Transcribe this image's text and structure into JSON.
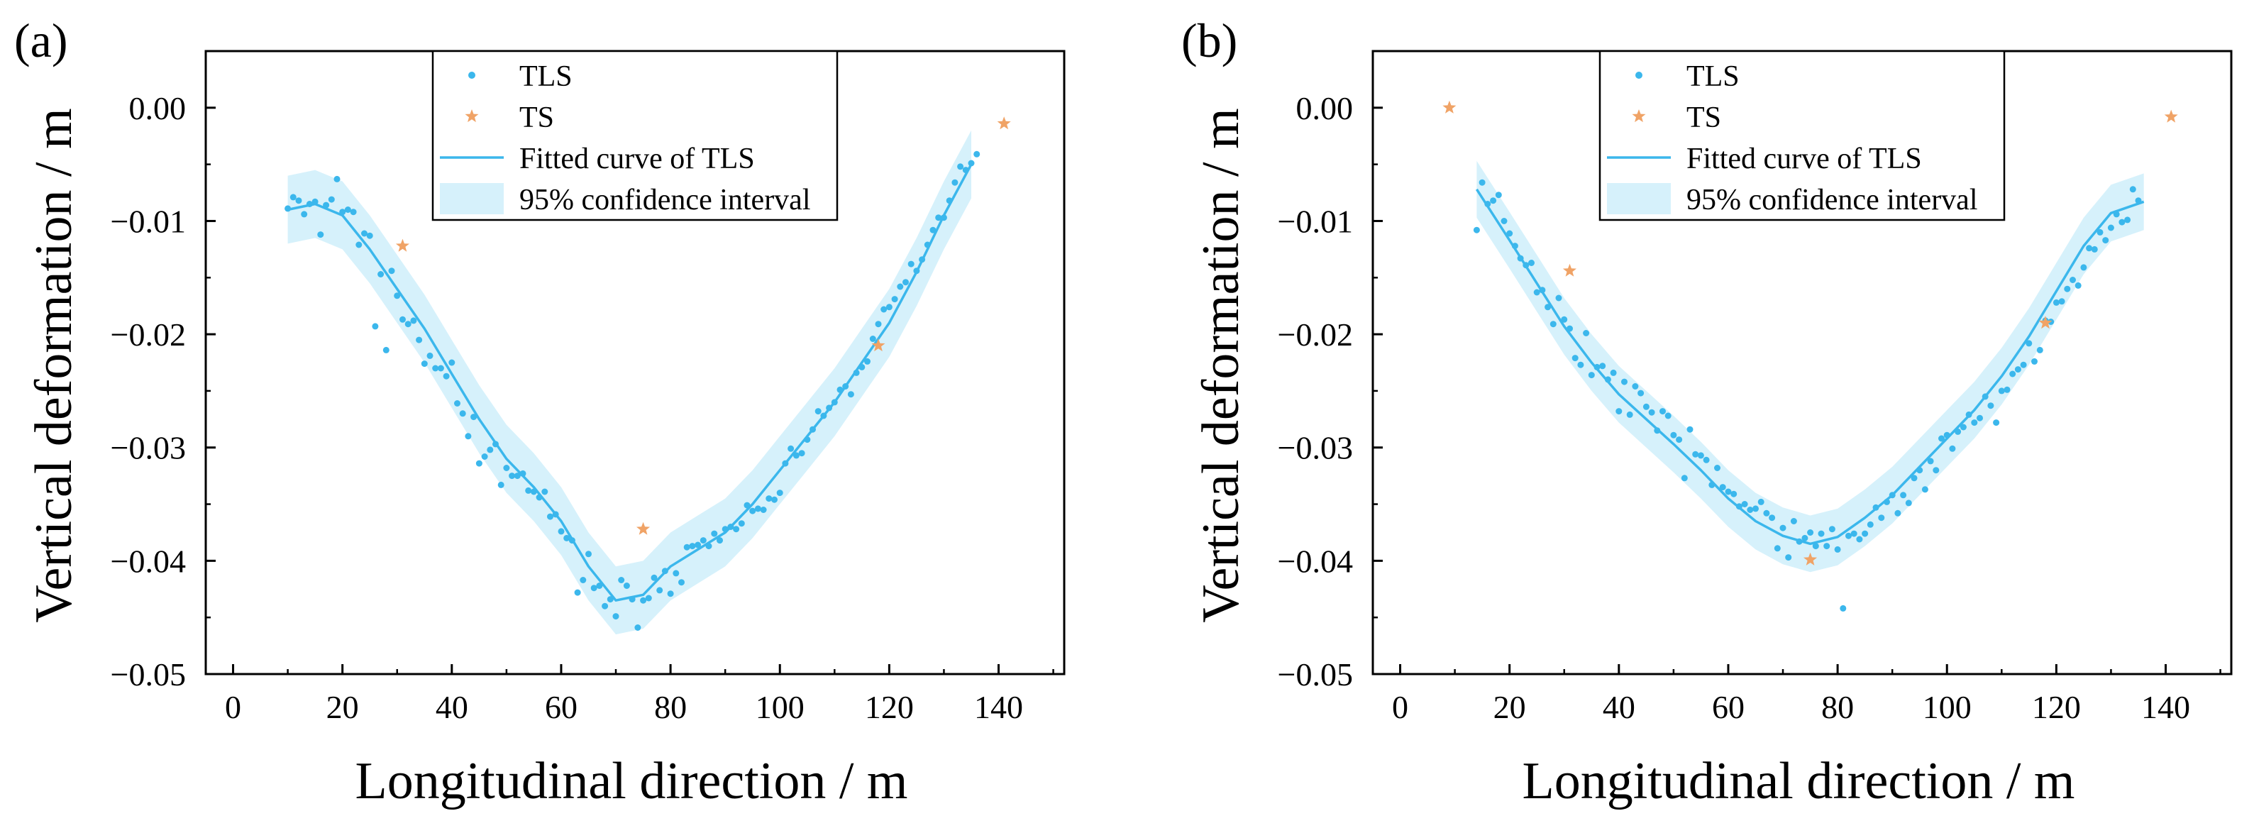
{
  "colors": {
    "tls": "#3bb7ec",
    "ts": "#f0a366",
    "band": "#d6f1fb",
    "axis": "#000000"
  },
  "chart_data": [
    {
      "panel_label": "(a)",
      "type": "scatter",
      "title": "",
      "xlabel": "Longitudinal direction / m",
      "ylabel": "Vertical deformation / m",
      "xlim": [
        -5,
        152
      ],
      "ylim": [
        -0.05,
        0.005
      ],
      "xticks": [
        0,
        20,
        40,
        60,
        80,
        100,
        120,
        140
      ],
      "xtick_labels": [
        "0",
        "20",
        "40",
        "60",
        "80",
        "100",
        "120",
        "140"
      ],
      "yticks": [
        0,
        -0.01,
        -0.02,
        -0.03,
        -0.04,
        -0.05
      ],
      "ytick_labels": [
        "0.00",
        "−0.01",
        "−0.02",
        "−0.03",
        "−0.04",
        "−0.05"
      ],
      "legend": {
        "position": "top-center",
        "entries": [
          "TLS",
          "TS",
          "Fitted curve of TLS",
          "95% confidence interval"
        ]
      },
      "fitted_curve": {
        "name": "Fitted curve of TLS",
        "x": [
          10,
          15,
          20,
          25,
          30,
          35,
          40,
          45,
          50,
          55,
          60,
          65,
          70,
          75,
          80,
          85,
          90,
          95,
          100,
          105,
          110,
          115,
          120,
          125,
          130,
          135
        ],
        "y": [
          -0.009,
          -0.0085,
          -0.0095,
          -0.0125,
          -0.016,
          -0.0195,
          -0.0235,
          -0.0275,
          -0.031,
          -0.0335,
          -0.0365,
          -0.0405,
          -0.0435,
          -0.043,
          -0.0405,
          -0.039,
          -0.0375,
          -0.035,
          -0.032,
          -0.029,
          -0.026,
          -0.0225,
          -0.019,
          -0.0145,
          -0.0095,
          -0.005
        ],
        "ci_halfwidth": 0.003
      },
      "tls_points": {
        "name": "TLS",
        "x": [
          10,
          11,
          12,
          13,
          14,
          15,
          16,
          17,
          18,
          19,
          20,
          21,
          22,
          23,
          24,
          25,
          26,
          27,
          28,
          29,
          30,
          31,
          32,
          33,
          34,
          35,
          36,
          37,
          38,
          39,
          40,
          41,
          42,
          43,
          44,
          45,
          46,
          47,
          48,
          49,
          50,
          51,
          52,
          53,
          54,
          55,
          56,
          57,
          58,
          59,
          60,
          61,
          62,
          63,
          64,
          65,
          66,
          67,
          68,
          69,
          70,
          71,
          72,
          73,
          74,
          75,
          76,
          77,
          78,
          79,
          80,
          81,
          82,
          83,
          84,
          85,
          86,
          87,
          88,
          89,
          90,
          91,
          92,
          93,
          94,
          95,
          96,
          97,
          98,
          99,
          100,
          101,
          102,
          103,
          104,
          105,
          106,
          107,
          108,
          109,
          110,
          111,
          112,
          113,
          114,
          115,
          116,
          117,
          118,
          119,
          120,
          121,
          122,
          123,
          124,
          125,
          126,
          127,
          128,
          129,
          130,
          131,
          132,
          133,
          134,
          135,
          136
        ],
        "y": [
          -0.0089,
          -0.0079,
          -0.0082,
          -0.0094,
          -0.0085,
          -0.0083,
          -0.0112,
          -0.0086,
          -0.0081,
          -0.0063,
          -0.0092,
          -0.009,
          -0.0092,
          -0.0121,
          -0.0111,
          -0.0113,
          -0.0193,
          -0.0147,
          -0.0214,
          -0.0144,
          -0.0166,
          -0.0187,
          -0.0191,
          -0.0188,
          -0.0205,
          -0.0226,
          -0.0219,
          -0.023,
          -0.023,
          -0.0237,
          -0.0225,
          -0.0261,
          -0.027,
          -0.029,
          -0.0273,
          -0.0314,
          -0.0308,
          -0.0302,
          -0.0297,
          -0.0333,
          -0.0318,
          -0.0325,
          -0.0325,
          -0.0323,
          -0.0338,
          -0.0339,
          -0.0344,
          -0.0339,
          -0.0361,
          -0.0359,
          -0.0374,
          -0.038,
          -0.0382,
          -0.0428,
          -0.0417,
          -0.0394,
          -0.0424,
          -0.0422,
          -0.044,
          -0.0434,
          -0.0449,
          -0.0417,
          -0.0422,
          -0.0434,
          -0.0459,
          -0.0435,
          -0.0433,
          -0.0415,
          -0.0426,
          -0.0409,
          -0.0429,
          -0.0411,
          -0.0419,
          -0.0388,
          -0.0387,
          -0.0386,
          -0.0382,
          -0.0387,
          -0.0376,
          -0.0382,
          -0.0372,
          -0.037,
          -0.0372,
          -0.0367,
          -0.0351,
          -0.0356,
          -0.0354,
          -0.0355,
          -0.0345,
          -0.0346,
          -0.034,
          -0.0314,
          -0.0301,
          -0.0307,
          -0.0305,
          -0.0293,
          -0.0284,
          -0.0268,
          -0.0272,
          -0.0265,
          -0.026,
          -0.0249,
          -0.0246,
          -0.0253,
          -0.0234,
          -0.0229,
          -0.0224,
          -0.0204,
          -0.0191,
          -0.0178,
          -0.0176,
          -0.0169,
          -0.0158,
          -0.0154,
          -0.0138,
          -0.0144,
          -0.0134,
          -0.0121,
          -0.0108,
          -0.0097,
          -0.0097,
          -0.0082,
          -0.0066,
          -0.0052,
          -0.0055,
          -0.0049,
          -0.0041
        ]
      },
      "ts_points": {
        "name": "TS",
        "x": [
          31,
          75,
          118,
          141
        ],
        "y": [
          -0.0122,
          -0.0372,
          -0.021,
          -0.0014
        ]
      }
    },
    {
      "panel_label": "(b)",
      "type": "scatter",
      "title": "",
      "xlabel": "Longitudinal direction / m",
      "ylabel": "Vertical deformation / m",
      "xlim": [
        -5,
        152
      ],
      "ylim": [
        -0.05,
        0.005
      ],
      "xticks": [
        0,
        20,
        40,
        60,
        80,
        100,
        120,
        140
      ],
      "xtick_labels": [
        "0",
        "20",
        "40",
        "60",
        "80",
        "100",
        "120",
        "140"
      ],
      "yticks": [
        0,
        -0.01,
        -0.02,
        -0.03,
        -0.04,
        -0.05
      ],
      "ytick_labels": [
        "0.00",
        "−0.01",
        "−0.02",
        "−0.03",
        "−0.04",
        "−0.05"
      ],
      "legend": {
        "position": "top-center",
        "entries": [
          "TLS",
          "TS",
          "Fitted curve of TLS",
          "95% confidence interval"
        ]
      },
      "fitted_curve": {
        "name": "Fitted curve of TLS",
        "x": [
          14,
          20,
          25,
          30,
          35,
          40,
          45,
          50,
          55,
          60,
          65,
          70,
          75,
          80,
          85,
          90,
          95,
          100,
          105,
          110,
          115,
          120,
          125,
          130,
          136
        ],
        "y": [
          -0.0072,
          -0.0117,
          -0.0155,
          -0.0193,
          -0.0225,
          -0.0253,
          -0.0275,
          -0.0297,
          -0.032,
          -0.0345,
          -0.0365,
          -0.0378,
          -0.0385,
          -0.0379,
          -0.0362,
          -0.0342,
          -0.0317,
          -0.0292,
          -0.0267,
          -0.0237,
          -0.0202,
          -0.0162,
          -0.0122,
          -0.0093,
          -0.0083
        ],
        "ci_halfwidth": 0.0025
      },
      "tls_points": {
        "name": "TLS",
        "x": [
          14,
          15,
          16,
          17,
          18,
          19,
          20,
          21,
          22,
          23,
          24,
          25,
          26,
          27,
          28,
          29,
          30,
          31,
          32,
          33,
          34,
          35,
          36,
          37,
          38,
          39,
          40,
          41,
          42,
          43,
          44,
          45,
          46,
          47,
          48,
          49,
          50,
          51,
          52,
          53,
          54,
          55,
          56,
          57,
          58,
          59,
          60,
          61,
          62,
          63,
          64,
          65,
          66,
          67,
          68,
          69,
          70,
          71,
          72,
          73,
          74,
          75,
          76,
          77,
          78,
          79,
          80,
          81,
          82,
          83,
          84,
          85,
          86,
          87,
          88,
          89,
          90,
          91,
          92,
          93,
          94,
          95,
          96,
          97,
          98,
          99,
          100,
          101,
          102,
          103,
          104,
          105,
          106,
          107,
          108,
          109,
          110,
          111,
          112,
          113,
          114,
          115,
          116,
          117,
          118,
          119,
          120,
          121,
          122,
          123,
          124,
          125,
          126,
          127,
          128,
          129,
          130,
          131,
          132,
          133,
          134,
          135
        ],
        "y": [
          -0.0108,
          -0.0066,
          -0.0085,
          -0.0082,
          -0.0077,
          -0.01,
          -0.0111,
          -0.0122,
          -0.0133,
          -0.0139,
          -0.0137,
          -0.0163,
          -0.0161,
          -0.0176,
          -0.0191,
          -0.0168,
          -0.0187,
          -0.0195,
          -0.0221,
          -0.0227,
          -0.0199,
          -0.0236,
          -0.0229,
          -0.0228,
          -0.024,
          -0.0234,
          -0.0268,
          -0.0242,
          -0.0271,
          -0.0246,
          -0.0252,
          -0.0264,
          -0.0269,
          -0.0285,
          -0.0268,
          -0.0272,
          -0.0289,
          -0.0293,
          -0.0327,
          -0.0284,
          -0.0306,
          -0.0307,
          -0.0311,
          -0.0333,
          -0.0318,
          -0.0335,
          -0.0339,
          -0.0341,
          -0.0352,
          -0.035,
          -0.0355,
          -0.0354,
          -0.0348,
          -0.0358,
          -0.0362,
          -0.0389,
          -0.0371,
          -0.0397,
          -0.0365,
          -0.0383,
          -0.038,
          -0.0375,
          -0.0387,
          -0.0376,
          -0.0387,
          -0.0372,
          -0.039,
          -0.0442,
          -0.0378,
          -0.0376,
          -0.0381,
          -0.0376,
          -0.0368,
          -0.0353,
          -0.0362,
          -0.0348,
          -0.0342,
          -0.0358,
          -0.0342,
          -0.0349,
          -0.0327,
          -0.032,
          -0.0337,
          -0.0312,
          -0.032,
          -0.0292,
          -0.0289,
          -0.0301,
          -0.0286,
          -0.0282,
          -0.0271,
          -0.0278,
          -0.0274,
          -0.0255,
          -0.0263,
          -0.0278,
          -0.025,
          -0.0249,
          -0.0235,
          -0.0231,
          -0.0227,
          -0.0208,
          -0.0224,
          -0.0214,
          -0.0188,
          -0.0189,
          -0.0172,
          -0.0171,
          -0.016,
          -0.0152,
          -0.0157,
          -0.0141,
          -0.0124,
          -0.0125,
          -0.011,
          -0.0117,
          -0.0106,
          -0.0094,
          -0.0101,
          -0.0099,
          -0.0072,
          -0.0082
        ]
      },
      "ts_points": {
        "name": "TS",
        "x": [
          9,
          31,
          75,
          118,
          141
        ],
        "y": [
          0.0,
          -0.0144,
          -0.0399,
          -0.019,
          -0.0008
        ]
      }
    }
  ]
}
